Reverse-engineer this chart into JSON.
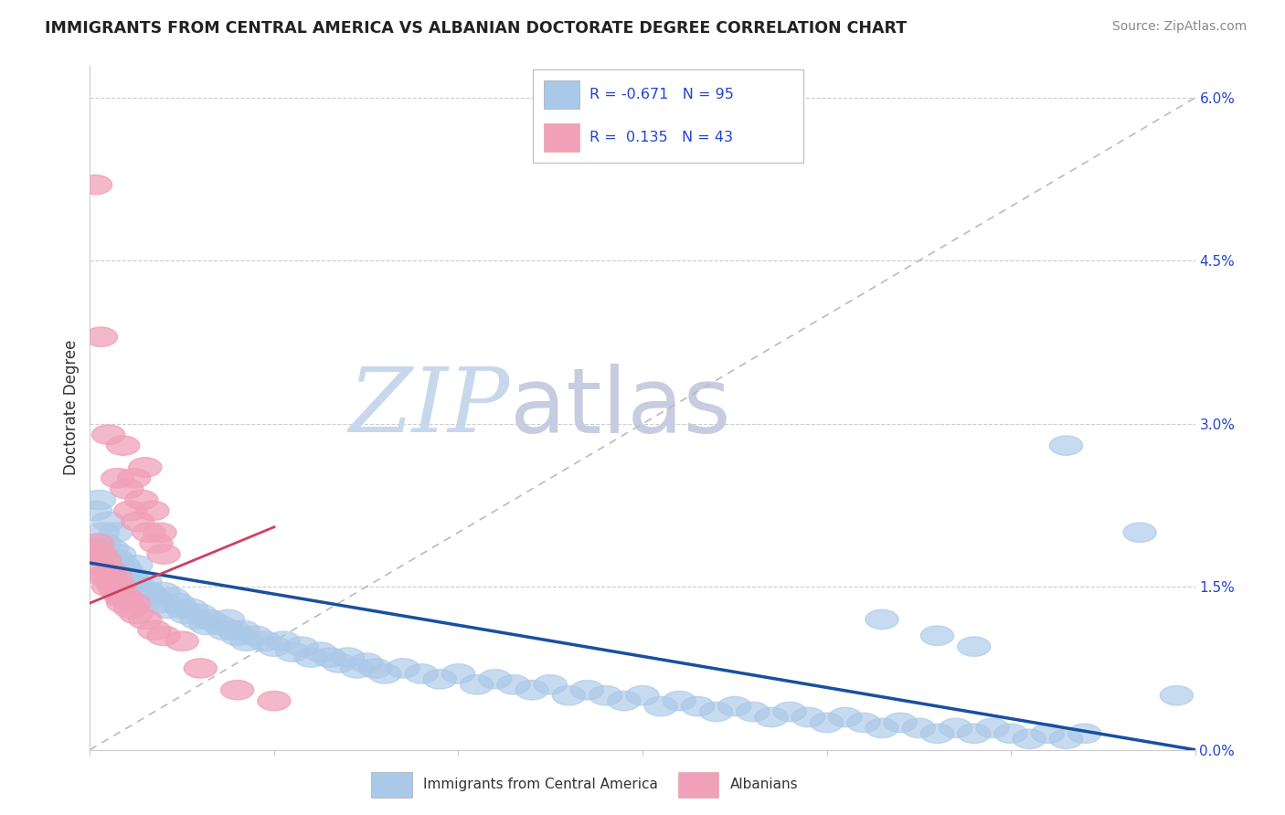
{
  "title": "IMMIGRANTS FROM CENTRAL AMERICA VS ALBANIAN DOCTORATE DEGREE CORRELATION CHART",
  "source": "Source: ZipAtlas.com",
  "ylabel": "Doctorate Degree",
  "right_ytick_labels": [
    "0.0%",
    "1.5%",
    "3.0%",
    "4.5%",
    "6.0%"
  ],
  "right_ytick_vals": [
    0.0,
    1.5,
    3.0,
    4.5,
    6.0
  ],
  "legend_blue_r": "-0.671",
  "legend_blue_n": "95",
  "legend_pink_r": "0.135",
  "legend_pink_n": "43",
  "legend_label_blue": "Immigrants from Central America",
  "legend_label_pink": "Albanians",
  "blue_color": "#aac8e8",
  "pink_color": "#f0a0b8",
  "blue_line_color": "#1a4fa0",
  "pink_line_color": "#d04060",
  "dashed_line_color": "#bbbbbb",
  "watermark_zip_color": "#c8d8ec",
  "watermark_atlas_color": "#c8cce0",
  "background_color": "#ffffff",
  "xlim": [
    0,
    60
  ],
  "ylim": [
    0,
    6.3
  ],
  "blue_line_x": [
    0,
    60
  ],
  "blue_line_y": [
    1.72,
    0.0
  ],
  "pink_line_x": [
    0,
    10
  ],
  "pink_line_y": [
    1.35,
    2.05
  ],
  "dashed_line_x": [
    0,
    60
  ],
  "dashed_line_y": [
    0.0,
    6.0
  ],
  "blue_scatter": [
    [
      0.3,
      2.2
    ],
    [
      0.5,
      2.3
    ],
    [
      0.7,
      2.0
    ],
    [
      0.8,
      1.9
    ],
    [
      1.0,
      2.1
    ],
    [
      1.2,
      1.85
    ],
    [
      1.4,
      2.0
    ],
    [
      1.5,
      1.75
    ],
    [
      1.6,
      1.8
    ],
    [
      1.8,
      1.7
    ],
    [
      2.0,
      1.65
    ],
    [
      2.2,
      1.6
    ],
    [
      2.4,
      1.55
    ],
    [
      2.5,
      1.7
    ],
    [
      2.7,
      1.5
    ],
    [
      3.0,
      1.55
    ],
    [
      3.2,
      1.45
    ],
    [
      3.5,
      1.4
    ],
    [
      3.8,
      1.35
    ],
    [
      4.0,
      1.45
    ],
    [
      4.2,
      1.3
    ],
    [
      4.5,
      1.4
    ],
    [
      4.8,
      1.35
    ],
    [
      5.0,
      1.3
    ],
    [
      5.2,
      1.25
    ],
    [
      5.5,
      1.3
    ],
    [
      5.8,
      1.2
    ],
    [
      6.0,
      1.25
    ],
    [
      6.3,
      1.15
    ],
    [
      6.5,
      1.2
    ],
    [
      7.0,
      1.15
    ],
    [
      7.3,
      1.1
    ],
    [
      7.5,
      1.2
    ],
    [
      7.8,
      1.1
    ],
    [
      8.0,
      1.05
    ],
    [
      8.3,
      1.1
    ],
    [
      8.5,
      1.0
    ],
    [
      9.0,
      1.05
    ],
    [
      9.5,
      1.0
    ],
    [
      10.0,
      0.95
    ],
    [
      10.5,
      1.0
    ],
    [
      11.0,
      0.9
    ],
    [
      11.5,
      0.95
    ],
    [
      12.0,
      0.85
    ],
    [
      12.5,
      0.9
    ],
    [
      13.0,
      0.85
    ],
    [
      13.5,
      0.8
    ],
    [
      14.0,
      0.85
    ],
    [
      14.5,
      0.75
    ],
    [
      15.0,
      0.8
    ],
    [
      15.5,
      0.75
    ],
    [
      16.0,
      0.7
    ],
    [
      17.0,
      0.75
    ],
    [
      18.0,
      0.7
    ],
    [
      19.0,
      0.65
    ],
    [
      20.0,
      0.7
    ],
    [
      21.0,
      0.6
    ],
    [
      22.0,
      0.65
    ],
    [
      23.0,
      0.6
    ],
    [
      24.0,
      0.55
    ],
    [
      25.0,
      0.6
    ],
    [
      26.0,
      0.5
    ],
    [
      27.0,
      0.55
    ],
    [
      28.0,
      0.5
    ],
    [
      29.0,
      0.45
    ],
    [
      30.0,
      0.5
    ],
    [
      31.0,
      0.4
    ],
    [
      32.0,
      0.45
    ],
    [
      33.0,
      0.4
    ],
    [
      34.0,
      0.35
    ],
    [
      35.0,
      0.4
    ],
    [
      36.0,
      0.35
    ],
    [
      37.0,
      0.3
    ],
    [
      38.0,
      0.35
    ],
    [
      39.0,
      0.3
    ],
    [
      40.0,
      0.25
    ],
    [
      41.0,
      0.3
    ],
    [
      42.0,
      0.25
    ],
    [
      43.0,
      0.2
    ],
    [
      44.0,
      0.25
    ],
    [
      45.0,
      0.2
    ],
    [
      46.0,
      0.15
    ],
    [
      47.0,
      0.2
    ],
    [
      48.0,
      0.15
    ],
    [
      49.0,
      0.2
    ],
    [
      50.0,
      0.15
    ],
    [
      51.0,
      0.1
    ],
    [
      52.0,
      0.15
    ],
    [
      53.0,
      0.1
    ],
    [
      54.0,
      0.15
    ],
    [
      43.0,
      1.2
    ],
    [
      46.0,
      1.05
    ],
    [
      48.0,
      0.95
    ],
    [
      53.0,
      2.8
    ],
    [
      57.0,
      2.0
    ],
    [
      59.0,
      0.5
    ]
  ],
  "pink_scatter": [
    [
      0.3,
      5.2
    ],
    [
      0.6,
      3.8
    ],
    [
      1.0,
      2.9
    ],
    [
      1.5,
      2.5
    ],
    [
      1.8,
      2.8
    ],
    [
      2.0,
      2.4
    ],
    [
      2.2,
      2.2
    ],
    [
      2.4,
      2.5
    ],
    [
      2.6,
      2.1
    ],
    [
      2.8,
      2.3
    ],
    [
      3.0,
      2.6
    ],
    [
      3.2,
      2.0
    ],
    [
      3.4,
      2.2
    ],
    [
      3.6,
      1.9
    ],
    [
      3.8,
      2.0
    ],
    [
      4.0,
      1.8
    ],
    [
      0.2,
      1.85
    ],
    [
      0.4,
      1.9
    ],
    [
      0.5,
      1.7
    ],
    [
      0.6,
      1.8
    ],
    [
      0.7,
      1.6
    ],
    [
      0.8,
      1.75
    ],
    [
      0.9,
      1.6
    ],
    [
      1.0,
      1.5
    ],
    [
      1.1,
      1.65
    ],
    [
      1.2,
      1.55
    ],
    [
      1.3,
      1.5
    ],
    [
      1.4,
      1.6
    ],
    [
      1.5,
      1.45
    ],
    [
      1.6,
      1.5
    ],
    [
      1.7,
      1.4
    ],
    [
      1.8,
      1.35
    ],
    [
      2.0,
      1.4
    ],
    [
      2.2,
      1.3
    ],
    [
      2.4,
      1.35
    ],
    [
      2.5,
      1.25
    ],
    [
      3.0,
      1.2
    ],
    [
      3.5,
      1.1
    ],
    [
      4.0,
      1.05
    ],
    [
      5.0,
      1.0
    ],
    [
      6.0,
      0.75
    ],
    [
      8.0,
      0.55
    ],
    [
      10.0,
      0.45
    ]
  ]
}
